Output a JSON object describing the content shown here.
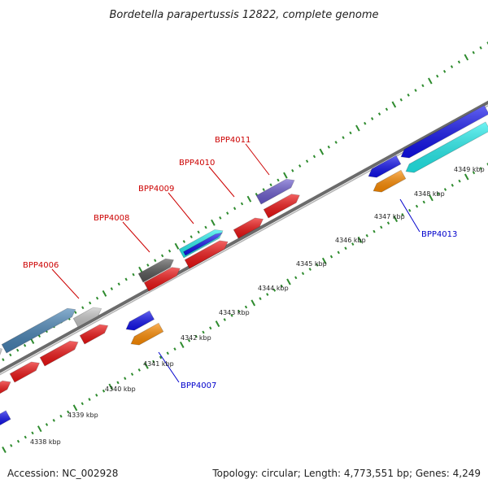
{
  "title": "Bordetella parapertussis 12822, complete genome",
  "footer": {
    "accession": "Accession: NC_002928",
    "topology": "Topology: circular; Length: 4,773,551 bp; Genes: 4,249"
  },
  "colors": {
    "backbone": "#7f7f7f",
    "tick": "#2e8b2e",
    "forward_label": "#cc0000",
    "reverse_label": "#0000cc",
    "red_gene": "#ee1111",
    "blue_gene": "#1111ee",
    "cyan_gene": "#22eeee",
    "orange_gene": "#ff8c00",
    "purple_gene": "#6a5acd",
    "dark_gray_gene": "#555555",
    "light_gray_gene": "#c8c8c8",
    "steel_gene": "#4682b4"
  },
  "scale_labels": [
    "4338 kbp",
    "4339 kbp",
    "4340 kbp",
    "4341 kbp",
    "4342 kbp",
    "4343 kbp",
    "4344 kbp",
    "4345 kbp",
    "4346 kbp",
    "4347 kbp",
    "4348 kbp",
    "4349 kbp"
  ],
  "gene_labels": {
    "forward": [
      "BPP4006",
      "BPP4008",
      "BPP4009",
      "BPP4010",
      "BPP4011"
    ],
    "reverse": [
      "BPP4007",
      "BPP4013"
    ]
  }
}
